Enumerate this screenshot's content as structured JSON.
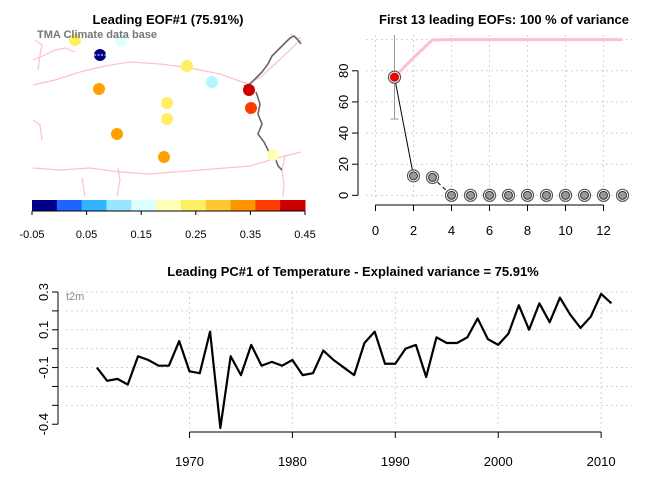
{
  "map_panel": {
    "title": "Leading EOF#1 (75.91%)",
    "source": "TMA Climate data base",
    "colorbar_colors": [
      "#00008b",
      "#1e64ff",
      "#32b4ff",
      "#96e6ff",
      "#dcffff",
      "#ffffb4",
      "#ffef64",
      "#ffc832",
      "#ff9600",
      "#ff3c00",
      "#cd0000"
    ],
    "colorbar_ticks": [
      "-0.05",
      "0.05",
      "0.15",
      "0.25",
      "0.35",
      "0.45"
    ],
    "stations": [
      {
        "value": -0.03,
        "color": "#00008b"
      },
      {
        "value": 0.15,
        "color": "#dcffff"
      },
      {
        "value": 0.22,
        "color": "#ffef64"
      },
      {
        "value": 0.24,
        "color": "#ffef64"
      },
      {
        "value": 0.16,
        "color": "#b4f5ff"
      },
      {
        "value": 0.33,
        "color": "#ffa000"
      },
      {
        "value": 0.22,
        "color": "#ffef64"
      },
      {
        "value": 0.43,
        "color": "#cd0000"
      },
      {
        "value": 0.38,
        "color": "#ff3c00"
      },
      {
        "value": 0.21,
        "color": "#ffef64"
      },
      {
        "value": 0.33,
        "color": "#ffa000"
      },
      {
        "value": 0.33,
        "color": "#ffa000"
      },
      {
        "value": 0.2,
        "color": "#ffffb4"
      }
    ]
  },
  "chart_data": [
    {
      "type": "line",
      "title": "First 13 leading EOFs:  100 % of variance",
      "x": [
        1,
        2,
        3,
        4,
        5,
        6,
        7,
        8,
        9,
        10,
        11,
        12,
        13
      ],
      "series": [
        {
          "values": [
            75.91,
            12.5,
            11.5,
            0,
            0,
            0,
            0,
            0,
            0,
            0,
            0,
            0,
            0
          ]
        },
        {
          "values": [
            75.91,
            88.4,
            99.9,
            100,
            100,
            100,
            100,
            100,
            100,
            100,
            100,
            100,
            100
          ]
        }
      ],
      "error_bar": {
        "x": 1,
        "low": 49,
        "high": 103
      },
      "xticks": [
        "0",
        "2",
        "4",
        "6",
        "8",
        "10",
        "12"
      ],
      "yticks": [
        "0",
        "20",
        "40",
        "60",
        "80"
      ],
      "xlim": [
        -0.5,
        13.5
      ],
      "ylim": [
        -3,
        103
      ]
    },
    {
      "type": "line",
      "title": "Leading PC#1 of Temperature - Explained variance = 75.91%",
      "series_label": "t2m",
      "x": [
        1961,
        1962,
        1963,
        1964,
        1965,
        1966,
        1967,
        1968,
        1969,
        1970,
        1971,
        1972,
        1973,
        1974,
        1975,
        1976,
        1977,
        1978,
        1979,
        1980,
        1981,
        1982,
        1983,
        1984,
        1985,
        1986,
        1987,
        1988,
        1989,
        1990,
        1991,
        1992,
        1993,
        1994,
        1995,
        1996,
        1997,
        1998,
        1999,
        2000,
        2001,
        2002,
        2003,
        2004,
        2005,
        2006,
        2007,
        2008,
        2009,
        2010,
        2011
      ],
      "values": [
        -0.1,
        -0.17,
        -0.16,
        -0.19,
        -0.04,
        -0.06,
        -0.09,
        -0.09,
        0.04,
        -0.12,
        -0.13,
        0.09,
        -0.42,
        -0.04,
        -0.14,
        0.02,
        -0.09,
        -0.07,
        -0.09,
        -0.06,
        -0.14,
        -0.13,
        -0.01,
        -0.06,
        -0.1,
        -0.14,
        0.03,
        0.09,
        -0.08,
        -0.08,
        0.0,
        0.02,
        -0.15,
        0.06,
        0.03,
        0.03,
        0.06,
        0.16,
        0.05,
        0.02,
        0.08,
        0.23,
        0.1,
        0.24,
        0.14,
        0.27,
        0.18,
        0.11,
        0.17,
        0.29,
        0.24
      ],
      "yticks": [
        "0.3",
        "0.1",
        "-0.1",
        "-0.4"
      ],
      "xticks": [
        "1970",
        "1980",
        "1990",
        "2000",
        "2010"
      ],
      "xlim": [
        1958,
        2013
      ],
      "ylim": [
        -0.42,
        0.3
      ]
    }
  ]
}
